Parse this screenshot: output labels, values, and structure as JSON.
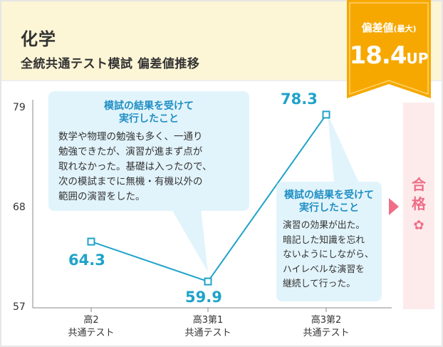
{
  "header": {
    "subject": "化学",
    "subtitle": "全統共通テスト模試 偏差値推移"
  },
  "badge": {
    "label": "偏差値",
    "label_note": "(最大)",
    "value": "18.4",
    "unit": "UP",
    "color": "#f6a800"
  },
  "chart_data": {
    "type": "line",
    "categories": [
      "高2\n共通テスト",
      "高3第1\n共通テスト",
      "高3第2\n共通テスト"
    ],
    "category_lines": [
      [
        "高2",
        "共通テスト"
      ],
      [
        "高3第1",
        "共通テスト"
      ],
      [
        "高3第2",
        "共通テスト"
      ]
    ],
    "series": [
      {
        "values": [
          64.3,
          59.9,
          78.3
        ],
        "color": "#1fa3c9"
      }
    ],
    "value_labels": [
      "64.3",
      "59.9",
      "78.3"
    ],
    "yticks": [
      "79",
      "68",
      "57"
    ],
    "ylim": [
      57,
      79
    ],
    "grid": false
  },
  "callouts": [
    {
      "title_lines": [
        "模試の結果を受けて",
        "実行したこと"
      ],
      "body_lines": [
        "数学や物理の勉強も多く、一通り",
        "勉強できたが、演習が進まず点が",
        "取れなかった。基礎は入ったので、",
        "次の模試までに無機・有機以外の",
        "範囲の演習をした。"
      ]
    },
    {
      "title_lines": [
        "模試の結果を受けて",
        "実行したこと"
      ],
      "body_lines": [
        "演習の効果が出た。",
        "暗記した知識を忘れ",
        "ないようにしながら、",
        "ハイレベルな演習を",
        "継続して行った。"
      ]
    }
  ],
  "result": {
    "text_lines": [
      "合",
      "格"
    ],
    "icon": "sakura-icon",
    "color": "#ef6e87"
  }
}
